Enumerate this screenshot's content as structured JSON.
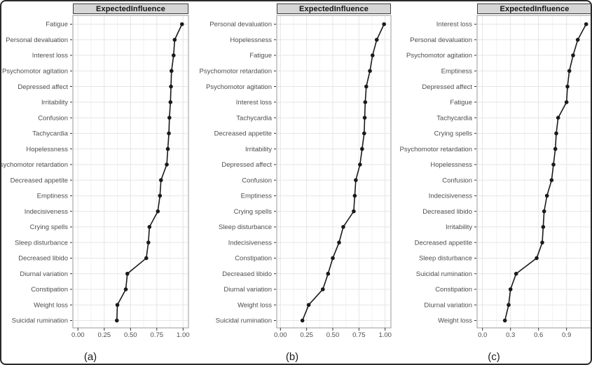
{
  "chart_data": [
    {
      "type": "line",
      "orientation": "horizontal-categories",
      "title": "ExpectedInfluence",
      "caption": "(a)",
      "xlabel": "",
      "ylabel": "",
      "grid": true,
      "legend": false,
      "xlim": [
        -0.05,
        1.05
      ],
      "x_ticks": [
        0,
        0.25,
        0.5,
        0.75,
        1.0
      ],
      "x_tick_labels": [
        "0.00",
        "0.25",
        "0.50",
        "0.75",
        "1.00"
      ],
      "x_minor_step": 0.125,
      "categories_top_to_bottom": [
        "Fatigue",
        "Personal devaluation",
        "Interest loss",
        "Psychomotor agitation",
        "Depressed affect",
        "Irritability",
        "Confusion",
        "Tachycardia",
        "Hopelessness",
        "Psychomotor retardation",
        "Decreased appetite",
        "Emptiness",
        "Indecisiveness",
        "Crying spells",
        "Sleep disturbance",
        "Decreased libido",
        "Diurnal variation",
        "Constipation",
        "Weight loss",
        "Suicidal rumination"
      ],
      "values": [
        0.99,
        0.92,
        0.91,
        0.89,
        0.885,
        0.88,
        0.87,
        0.865,
        0.855,
        0.845,
        0.79,
        0.78,
        0.76,
        0.68,
        0.67,
        0.65,
        0.47,
        0.455,
        0.375,
        0.37
      ]
    },
    {
      "type": "line",
      "orientation": "horizontal-categories",
      "title": "ExpectedInfluence",
      "caption": "(b)",
      "xlabel": "",
      "ylabel": "",
      "grid": true,
      "legend": false,
      "xlim": [
        -0.05,
        1.05
      ],
      "x_ticks": [
        0,
        0.25,
        0.5,
        0.75,
        1.0
      ],
      "x_tick_labels": [
        "0.00",
        "0.25",
        "0.50",
        "0.75",
        "1.00"
      ],
      "x_minor_step": 0.125,
      "categories_top_to_bottom": [
        "Personal devaluation",
        "Hopelessness",
        "Fatigue",
        "Psychomotor retardation",
        "Psychomotor agitation",
        "Interest loss",
        "Tachycardia",
        "Decreased appetite",
        "Irritability",
        "Depressed affect",
        "Confusion",
        "Emptiness",
        "Crying spells",
        "Sleep disturbance",
        "Indecisiveness",
        "Constipation",
        "Decreased libido",
        "Diurnal variation",
        "Weight loss",
        "Suicidal rumination"
      ],
      "values": [
        0.99,
        0.92,
        0.88,
        0.855,
        0.82,
        0.81,
        0.805,
        0.8,
        0.78,
        0.76,
        0.72,
        0.71,
        0.7,
        0.6,
        0.56,
        0.5,
        0.455,
        0.405,
        0.27,
        0.21
      ]
    },
    {
      "type": "line",
      "orientation": "horizontal-categories",
      "title": "ExpectedInfluence",
      "caption": "(c)",
      "xlabel": "",
      "ylabel": "",
      "grid": true,
      "legend": false,
      "xlim": [
        -0.06,
        1.17
      ],
      "x_ticks": [
        0,
        0.3,
        0.6,
        0.9
      ],
      "x_tick_labels": [
        "0.0",
        "0.3",
        "0.6",
        "0.9"
      ],
      "x_minor_step": 0.15,
      "categories_top_to_bottom": [
        "Interest loss",
        "Personal devaluation",
        "Psychomotor agitation",
        "Emptiness",
        "Depressed affect",
        "Fatigue",
        "Tachycardia",
        "Crying spells",
        "Psychomotor retardation",
        "Hopelessness",
        "Confusion",
        "Indecisiveness",
        "Decreased libido",
        "Irritability",
        "Decreased appetite",
        "Sleep disturbance",
        "Suicidal rumination",
        "Constipation",
        "Diurnal variation",
        "Weight loss"
      ],
      "values": [
        1.11,
        1.02,
        0.97,
        0.93,
        0.91,
        0.9,
        0.81,
        0.79,
        0.78,
        0.76,
        0.74,
        0.69,
        0.66,
        0.65,
        0.64,
        0.58,
        0.36,
        0.3,
        0.28,
        0.24
      ]
    }
  ],
  "colors": {
    "point": "#1a1a1a",
    "line": "#1a1a1a",
    "strip_bg": "#d6d6d6",
    "strip_border": "#3c3c3c",
    "grid_major": "#e5e5e5",
    "grid_minor": "#f2f2f2",
    "panel_border": "#9a9a9a",
    "axis_text": "#4d4d4d",
    "tick_mark": "#333333",
    "figure_border": "#2a2a2a"
  }
}
